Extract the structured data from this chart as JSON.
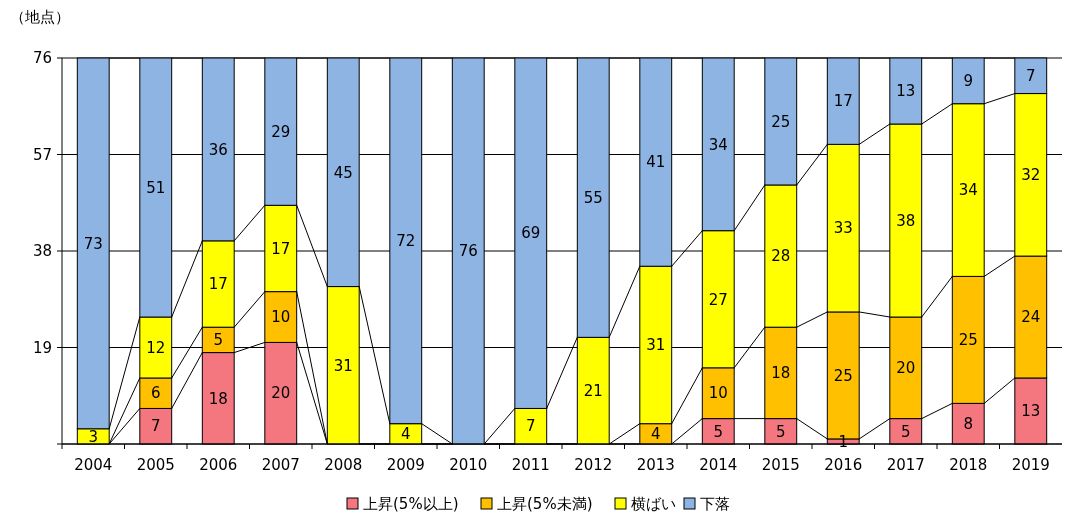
{
  "chart_data": {
    "type": "bar",
    "stacked": true,
    "ylabel": "（地点）",
    "categories": [
      "2004",
      "2005",
      "2006",
      "2007",
      "2008",
      "2009",
      "2010",
      "2011",
      "2012",
      "2013",
      "2014",
      "2015",
      "2016",
      "2017",
      "2018",
      "2019"
    ],
    "series": [
      {
        "name": "上昇(5%以上)",
        "color": "#f4777f",
        "values": [
          0,
          7,
          18,
          20,
          0,
          0,
          0,
          0,
          0,
          0,
          5,
          5,
          1,
          5,
          8,
          13
        ],
        "value_labels": [
          null,
          "7",
          "18",
          "20",
          null,
          null,
          null,
          null,
          null,
          null,
          "5",
          "5",
          "1",
          "5",
          "8",
          "13"
        ]
      },
      {
        "name": "上昇(5%未満)",
        "color": "#ffc000",
        "values": [
          0,
          6,
          5,
          10,
          0,
          0,
          0,
          0,
          0,
          4,
          10,
          18,
          25,
          20,
          25,
          24
        ],
        "value_labels": [
          null,
          "6",
          "5",
          "10",
          null,
          null,
          null,
          null,
          null,
          "4",
          "10",
          "18",
          "25",
          "20",
          "25",
          "24"
        ]
      },
      {
        "name": "横ばい",
        "color": "#ffff00",
        "values": [
          3,
          12,
          17,
          17,
          31,
          4,
          0,
          7,
          21,
          31,
          27,
          28,
          33,
          38,
          34,
          32
        ],
        "value_labels": [
          "3",
          "12",
          "17",
          "17",
          "31",
          "4",
          null,
          "7",
          "21",
          "31",
          "27",
          "28",
          "33",
          "38",
          "34",
          "32"
        ]
      },
      {
        "name": "下落",
        "color": "#8eb4e3",
        "values": [
          73,
          51,
          36,
          29,
          45,
          72,
          76,
          69,
          55,
          41,
          34,
          25,
          17,
          13,
          9,
          7
        ],
        "value_labels": [
          "73",
          "51",
          "36",
          "29",
          "45",
          "72",
          "76",
          "69",
          "55",
          "41",
          "34",
          "25",
          "17",
          "13",
          "9",
          "7"
        ]
      }
    ],
    "ylim": [
      0,
      76
    ],
    "yticks": [
      {
        "value": 0,
        "label": null
      },
      19,
      38,
      57,
      76
    ],
    "grid": "y",
    "legend": "bottom"
  }
}
